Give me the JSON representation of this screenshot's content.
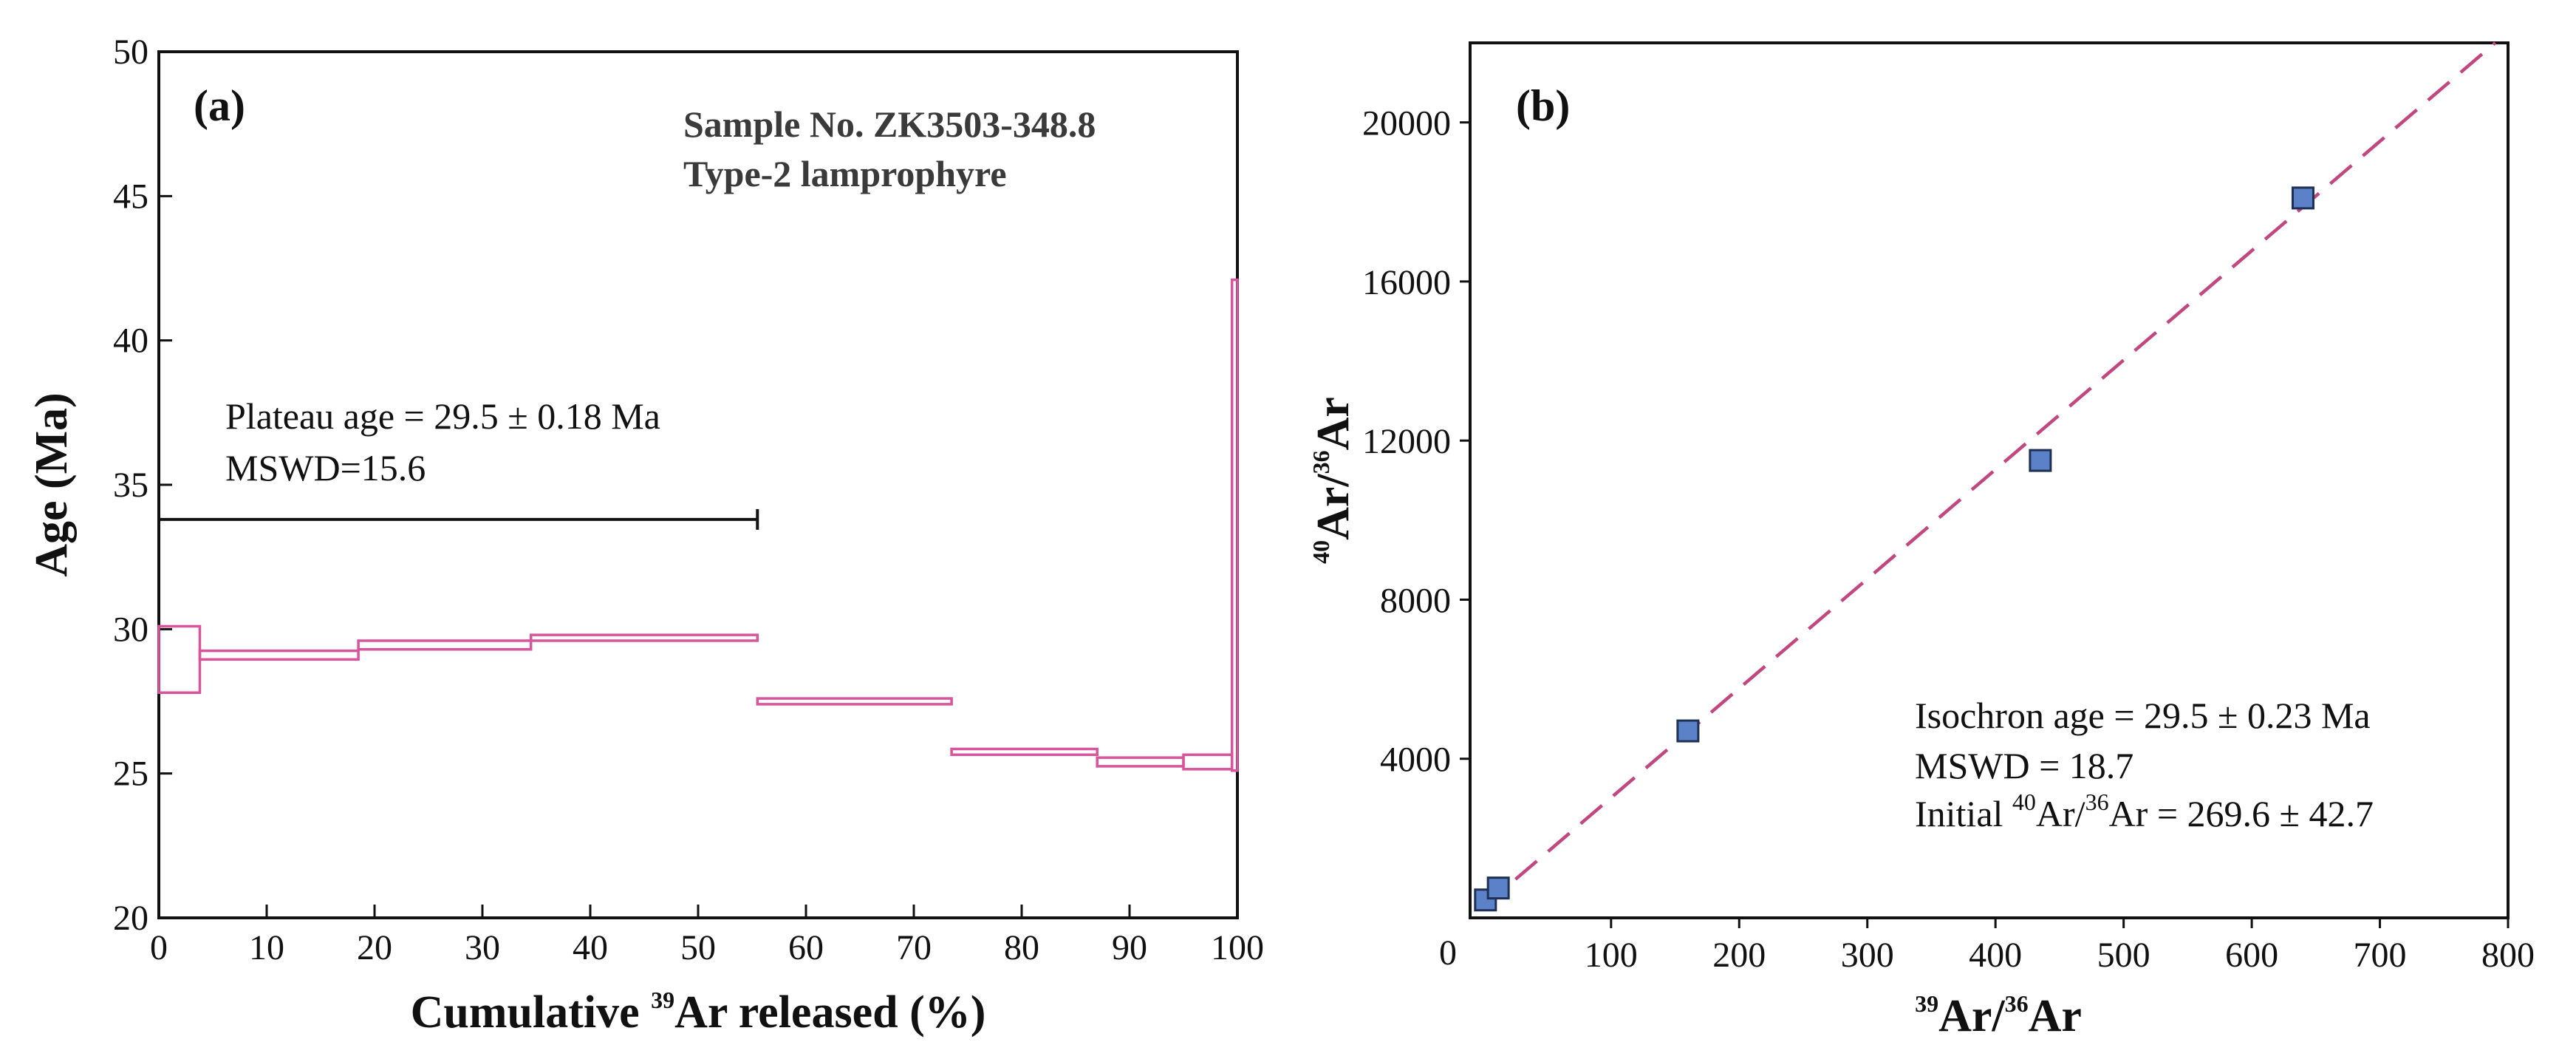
{
  "chart_data": [
    {
      "type": "step",
      "panel_label": "(a)",
      "title_lines": [
        "Sample No. ZK3503-348.8",
        "Type-2 lamprophyre"
      ],
      "ylabel": "Age (Ma)",
      "xlabel_pre": "Cumulative ",
      "xlabel_sup": "39",
      "xlabel_post": "Ar released (%)",
      "xlim": [
        0,
        100
      ],
      "ylim": [
        20,
        50
      ],
      "xticks": [
        0,
        10,
        20,
        30,
        40,
        50,
        60,
        70,
        80,
        90,
        100
      ],
      "yticks": [
        20,
        25,
        30,
        35,
        40,
        45,
        50
      ],
      "steps": [
        {
          "x0": 0,
          "x1": 3.8,
          "age": 28.95,
          "err": 1.15
        },
        {
          "x0": 3.8,
          "x1": 18.5,
          "age": 29.1,
          "err": 0.15
        },
        {
          "x0": 18.5,
          "x1": 34.5,
          "age": 29.45,
          "err": 0.15
        },
        {
          "x0": 34.5,
          "x1": 55.5,
          "age": 29.7,
          "err": 0.1
        },
        {
          "x0": 55.5,
          "x1": 73.5,
          "age": 27.5,
          "err": 0.1
        },
        {
          "x0": 73.5,
          "x1": 87,
          "age": 25.75,
          "err": 0.1
        },
        {
          "x0": 87,
          "x1": 95,
          "age": 25.4,
          "err": 0.15
        },
        {
          "x0": 95,
          "x1": 99.5,
          "age": 25.4,
          "err": 0.25
        },
        {
          "x0": 99.5,
          "x1": 100,
          "age": 33.6,
          "err": 8.5
        }
      ],
      "plateau": {
        "x0": 0,
        "x1": 55.5,
        "y": 33.8
      },
      "annotation_lines": [
        "Plateau age = 29.5 ± 0.18 Ma",
        "MSWD=15.6"
      ],
      "colors": {
        "steps": "#d9549a",
        "axis": "#111111",
        "plateau": "#111111"
      }
    },
    {
      "type": "scatter",
      "panel_label": "(b)",
      "xlabel_sup1": "39",
      "xlabel_mid": "Ar/",
      "xlabel_sup2": "36",
      "xlabel_end": "Ar",
      "ylabel_sup1": "40",
      "ylabel_mid": "Ar/",
      "ylabel_sup2": "36",
      "ylabel_end": "Ar",
      "xlim": [
        -10,
        800
      ],
      "ylim": [
        0,
        22000
      ],
      "xticks": [
        100,
        200,
        300,
        400,
        500,
        600,
        700,
        800
      ],
      "yticks": [
        4000,
        8000,
        12000,
        16000,
        20000
      ],
      "origin_label": "0",
      "points": [
        {
          "x": 2,
          "y": 450
        },
        {
          "x": 12,
          "y": 750
        },
        {
          "x": 160,
          "y": 4700
        },
        {
          "x": 435,
          "y": 11500
        },
        {
          "x": 640,
          "y": 18100
        }
      ],
      "fit_line": {
        "x0": 0,
        "y0": 269.6,
        "x1": 790,
        "y1": 22000
      },
      "annotation_lines": [
        "Isochron age = 29.5 ± 0.23 Ma",
        "MSWD = 18.7"
      ],
      "annotation_initial": {
        "pre": "Initial ",
        "sup1": "40",
        "mid": "Ar/",
        "sup2": "36",
        "post": "Ar = 269.6 ± 42.7"
      },
      "colors": {
        "marker_fill": "#5b82c8",
        "marker_edge": "#1f2f55",
        "fit_line": "#c2467f",
        "axis": "#111111"
      }
    }
  ]
}
